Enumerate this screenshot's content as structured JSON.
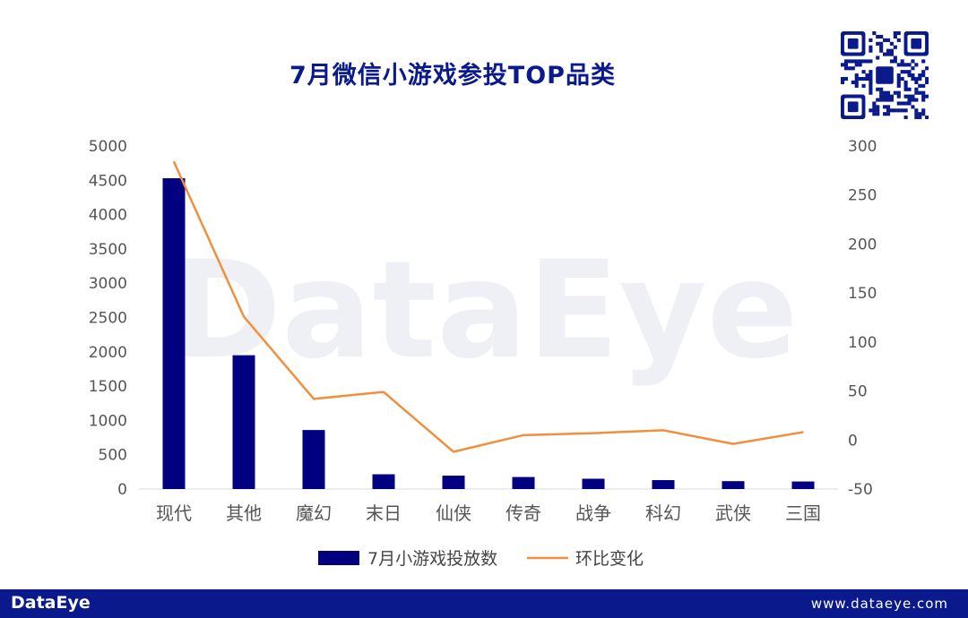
{
  "title": "7月微信小游戏参投TOP品类",
  "watermark": "DataEye",
  "footer": {
    "logo": "DataEye",
    "url": "www.dataeye.com"
  },
  "colors": {
    "bar": "#000080",
    "line": "#f0903c",
    "title": "#0a1a8c",
    "footer_bg": "#0a1a8c"
  },
  "qr_icon": "qr-code-icon",
  "chart_data": {
    "type": "bar",
    "categories": [
      "现代",
      "其他",
      "魔幻",
      "末日",
      "仙侠",
      "传奇",
      "战争",
      "科幻",
      "武侠",
      "三国"
    ],
    "series": [
      {
        "name": "7月小游戏投放数",
        "type": "bar",
        "axis": "left",
        "values": [
          4530,
          1950,
          860,
          215,
          195,
          175,
          150,
          130,
          115,
          110
        ]
      },
      {
        "name": "环比变化",
        "type": "line",
        "axis": "right",
        "values": [
          284,
          126,
          42,
          49,
          -12,
          5,
          7,
          10,
          -4,
          8
        ]
      }
    ],
    "y_left": {
      "min": 0,
      "max": 5000,
      "ticks": [
        "0",
        "500",
        "1000",
        "1500",
        "2000",
        "2500",
        "3000",
        "3500",
        "4000",
        "4500",
        "5000"
      ]
    },
    "y_right": {
      "min": -50,
      "max": 300,
      "ticks": [
        "-50",
        "0",
        "50",
        "100",
        "150",
        "200",
        "250",
        "300"
      ]
    },
    "grid": false,
    "legend": "bottom"
  }
}
